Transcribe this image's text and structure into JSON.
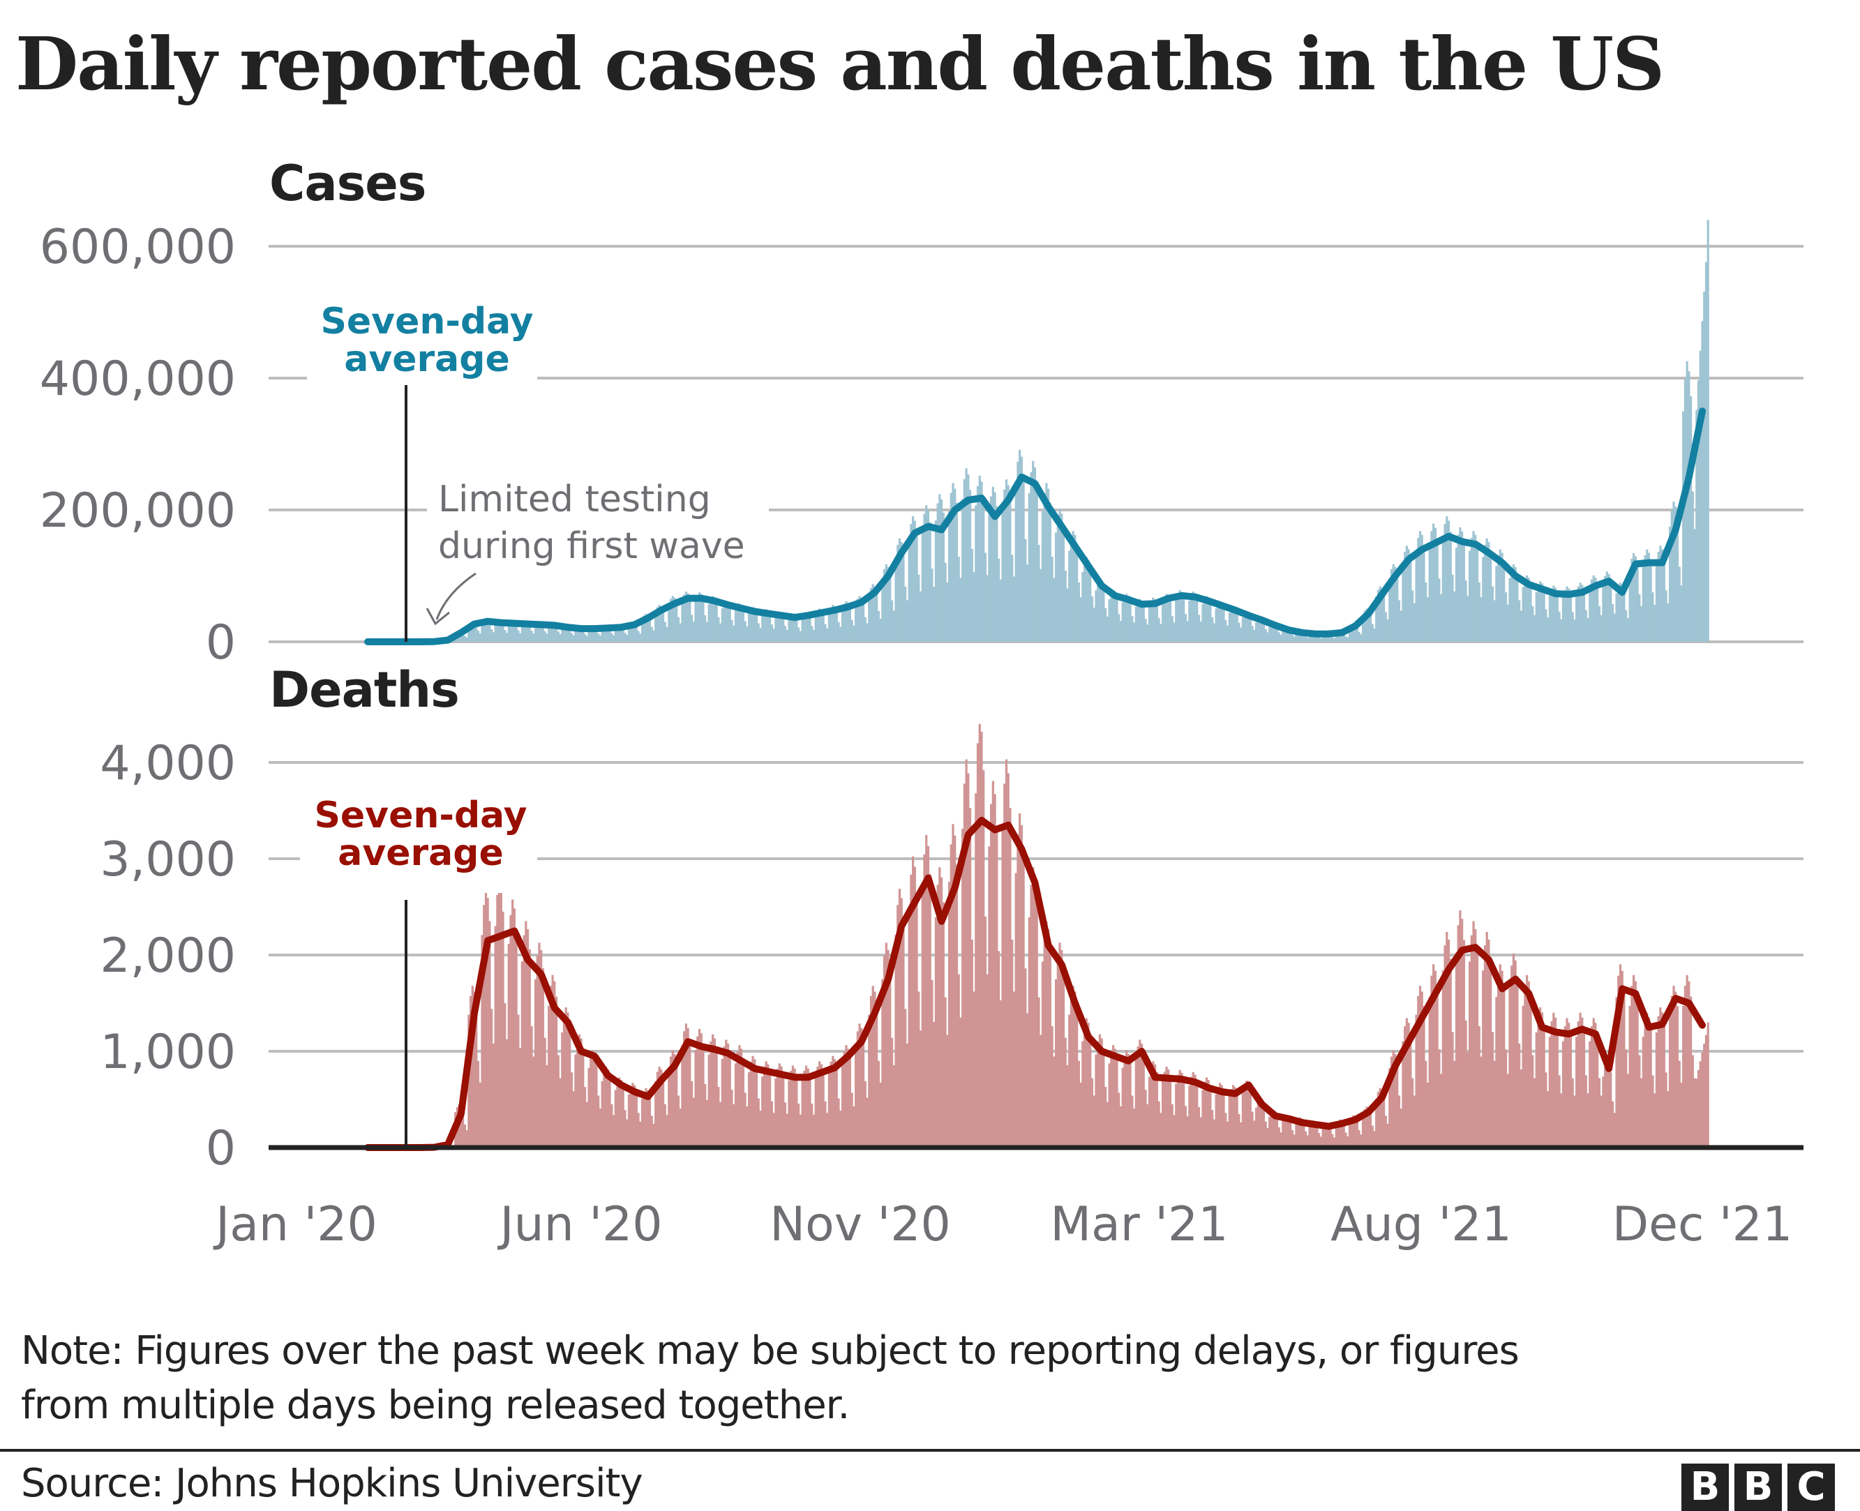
{
  "header": {
    "title": "Daily reported cases and deaths in the US"
  },
  "footer": {
    "note_line1": "Note: Figures over the past week may be subject to reporting delays, or figures",
    "note_line2": "from multiple days being released together.",
    "source": "Source: Johns Hopkins University",
    "logo_letters": [
      "B",
      "B",
      "C"
    ]
  },
  "colors": {
    "cases_line": "#1380a1",
    "cases_bars": "#9fc4d3",
    "deaths_line": "#990f02",
    "deaths_bars": "#d09494",
    "grid": "#bdbdbd",
    "text_grey": "#6e6e73",
    "text_dark": "#222222"
  },
  "chart_data": [
    {
      "type": "bar",
      "id": "cases",
      "title": "Cases",
      "xlabel": "",
      "ylabel": "",
      "x_start": "2020-01-22",
      "x_step_days": 7,
      "x_ticks": [
        "Jan '20",
        "Jun '20",
        "Nov '20",
        "Mar '21",
        "Aug '21",
        "Dec '21"
      ],
      "y_ticks": [
        0,
        200000,
        400000,
        600000
      ],
      "y_tick_labels": [
        "0",
        "200,000",
        "400,000",
        "600,000"
      ],
      "ylim": [
        0,
        600000
      ],
      "grid": true,
      "series": [
        {
          "name": "Daily cases",
          "kind": "bar",
          "values": [
            0,
            0,
            0,
            0,
            100,
            400,
            3000,
            15000,
            28000,
            32000,
            30000,
            29000,
            28000,
            27000,
            26000,
            22000,
            20000,
            21000,
            22000,
            23000,
            27000,
            38000,
            50000,
            62000,
            68000,
            67000,
            62000,
            55000,
            52000,
            47000,
            44000,
            40000,
            36000,
            40000,
            45000,
            50000,
            55000,
            62000,
            78000,
            105000,
            140000,
            170000,
            185000,
            200000,
            215000,
            235000,
            225000,
            210000,
            220000,
            260000,
            245000,
            215000,
            180000,
            150000,
            115000,
            85000,
            70000,
            65000,
            58000,
            60000,
            65000,
            70000,
            68000,
            62000,
            55000,
            48000,
            40000,
            32000,
            24000,
            18000,
            14000,
            12000,
            12000,
            14000,
            25000,
            45000,
            75000,
            105000,
            130000,
            150000,
            160000,
            170000,
            155000,
            150000,
            140000,
            125000,
            105000,
            90000,
            82000,
            76000,
            75000,
            80000,
            90000,
            95000,
            80000,
            120000,
            125000,
            130000,
            190000,
            380000,
            640000
          ]
        },
        {
          "name": "Seven-day average",
          "kind": "line",
          "values": [
            0,
            0,
            0,
            0,
            50,
            300,
            2500,
            14000,
            27000,
            31000,
            29000,
            28000,
            27000,
            26000,
            25000,
            22000,
            20000,
            20000,
            21000,
            22000,
            26000,
            36000,
            48000,
            58000,
            66000,
            66000,
            62000,
            56000,
            51000,
            46000,
            43000,
            40000,
            37000,
            40000,
            44000,
            48000,
            53000,
            60000,
            75000,
            100000,
            135000,
            165000,
            175000,
            170000,
            200000,
            215000,
            218000,
            190000,
            215000,
            250000,
            240000,
            205000,
            175000,
            145000,
            115000,
            85000,
            70000,
            64000,
            57000,
            58000,
            66000,
            70000,
            68000,
            62000,
            55000,
            48000,
            40000,
            33000,
            25000,
            18000,
            14000,
            12000,
            12000,
            14000,
            24000,
            43000,
            72000,
            100000,
            125000,
            140000,
            150000,
            160000,
            152000,
            148000,
            135000,
            120000,
            100000,
            87000,
            80000,
            73000,
            72000,
            75000,
            85000,
            92000,
            75000,
            118000,
            120000,
            120000,
            170000,
            250000,
            350000
          ]
        }
      ],
      "annotations": [
        {
          "text_lines": [
            "Seven-day",
            "average"
          ],
          "color": "#1380a1",
          "points_to": "2020-03-15"
        },
        {
          "text_lines": [
            "Limited testing",
            "during first wave"
          ],
          "color": "#6e6e73",
          "points_to": "2020-04-05"
        }
      ]
    },
    {
      "type": "bar",
      "id": "deaths",
      "title": "Deaths",
      "xlabel": "",
      "ylabel": "",
      "x_start": "2020-01-22",
      "x_step_days": 7,
      "x_ticks": [
        "Jan '20",
        "Jun '20",
        "Nov '20",
        "Mar '21",
        "Aug '21",
        "Dec '21"
      ],
      "y_ticks": [
        0,
        1000,
        2000,
        3000,
        4000
      ],
      "y_tick_labels": [
        "0",
        "1,000",
        "2,000",
        "3,000",
        "4,000"
      ],
      "ylim": [
        0,
        4000
      ],
      "grid": true,
      "series": [
        {
          "name": "Daily deaths",
          "kind": "bar",
          "values": [
            0,
            0,
            0,
            0,
            0,
            5,
            40,
            400,
            1500,
            2400,
            2500,
            2300,
            2100,
            1900,
            1600,
            1300,
            1050,
            900,
            750,
            650,
            600,
            550,
            750,
            900,
            1150,
            1100,
            1050,
            1000,
            950,
            850,
            800,
            780,
            760,
            760,
            800,
            850,
            950,
            1150,
            1500,
            1900,
            2400,
            2700,
            2900,
            2600,
            3000,
            3600,
            4000,
            3400,
            3600,
            3100,
            2600,
            2100,
            1900,
            1500,
            1200,
            1050,
            950,
            900,
            1000,
            800,
            750,
            720,
            700,
            650,
            600,
            580,
            620,
            450,
            350,
            300,
            280,
            250,
            230,
            260,
            300,
            380,
            550,
            900,
            1200,
            1500,
            1700,
            2000,
            2200,
            2100,
            2000,
            1700,
            1800,
            1600,
            1300,
            1250,
            1200,
            1250,
            1200,
            800,
            1700,
            1600,
            1250,
            1300,
            1500,
            1600,
            1300
          ]
        },
        {
          "name": "Seven-day average",
          "kind": "line",
          "values": [
            0,
            0,
            0,
            0,
            0,
            3,
            30,
            350,
            1400,
            2150,
            2200,
            2250,
            1950,
            1800,
            1450,
            1300,
            1000,
            950,
            750,
            650,
            580,
            530,
            700,
            850,
            1100,
            1050,
            1020,
            980,
            900,
            820,
            790,
            760,
            730,
            730,
            780,
            830,
            950,
            1100,
            1400,
            1750,
            2300,
            2550,
            2800,
            2350,
            2700,
            3250,
            3400,
            3300,
            3350,
            3100,
            2750,
            2100,
            1900,
            1500,
            1150,
            1000,
            950,
            900,
            1000,
            730,
            720,
            710,
            680,
            620,
            580,
            560,
            650,
            450,
            330,
            300,
            260,
            240,
            220,
            250,
            290,
            370,
            520,
            850,
            1100,
            1350,
            1600,
            1850,
            2050,
            2080,
            1950,
            1650,
            1750,
            1600,
            1250,
            1200,
            1180,
            1230,
            1180,
            820,
            1650,
            1600,
            1250,
            1280,
            1550,
            1500,
            1270
          ]
        }
      ],
      "annotations": [
        {
          "text_lines": [
            "Seven-day",
            "average"
          ],
          "color": "#990f02",
          "points_to": "2020-03-15"
        }
      ]
    }
  ]
}
